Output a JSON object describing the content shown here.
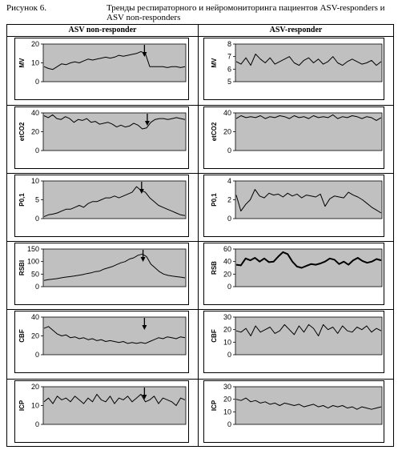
{
  "figure": {
    "label": "Рисунок 6.",
    "title": "Тренды респираторного и нейромониторинга пациентов ASV-responders и ASV non-responders"
  },
  "columns": {
    "left": "ASV non-responder",
    "right": "ASV-responder"
  },
  "colors": {
    "plot_bg": "#c0c0c0",
    "line": "#000000",
    "frame_border": "#000000"
  },
  "chart_data": [
    {
      "type": "line",
      "panel": "ASV non-responder",
      "ylabel": "MV",
      "ylim": [
        0,
        20
      ],
      "yticks": [
        0,
        10,
        20
      ],
      "marker": "arrow-down",
      "marker_x": 0.71,
      "series": [
        {
          "values": [
            8,
            7,
            6.5,
            8,
            9.5,
            9,
            10,
            10.5,
            10,
            11,
            12,
            11.5,
            12,
            12.5,
            13,
            12.5,
            13,
            14,
            13.5,
            14,
            14.5,
            15,
            16,
            15,
            8,
            8,
            8,
            8,
            7.5,
            8,
            8,
            7.5,
            8
          ]
        }
      ]
    },
    {
      "type": "line",
      "panel": "ASV-responder",
      "ylabel": "MV",
      "ylim": [
        5,
        8
      ],
      "yticks": [
        5,
        6,
        7,
        8
      ],
      "series": [
        {
          "values": [
            6.6,
            6.4,
            6.9,
            6.3,
            7.2,
            6.8,
            6.5,
            6.9,
            6.4,
            6.6,
            6.8,
            7.0,
            6.5,
            6.3,
            6.7,
            6.9,
            6.5,
            6.8,
            6.4,
            6.6,
            7.0,
            6.5,
            6.3,
            6.6,
            6.8,
            6.6,
            6.4,
            6.5,
            6.7,
            6.3,
            6.6
          ]
        }
      ]
    },
    {
      "type": "line",
      "panel": "ASV non-responder",
      "ylabel": "etCO2",
      "ylim": [
        0,
        40
      ],
      "yticks": [
        0,
        20,
        40
      ],
      "marker": "arrow-down",
      "marker_x": 0.73,
      "series": [
        {
          "values": [
            37,
            35,
            38,
            34,
            33,
            36,
            34,
            30,
            33,
            32,
            34,
            30,
            31,
            28,
            29,
            30,
            28,
            25,
            27,
            25,
            26,
            29,
            27,
            23,
            24,
            30,
            33,
            34,
            34,
            33,
            34,
            35,
            34,
            33
          ]
        }
      ]
    },
    {
      "type": "line",
      "panel": "ASV-responder",
      "ylabel": "etCO2",
      "ylim": [
        0,
        40
      ],
      "yticks": [
        0,
        20,
        40
      ],
      "series": [
        {
          "values": [
            34,
            37,
            35,
            36,
            35,
            37,
            34,
            36,
            35,
            37,
            36,
            34,
            37,
            35,
            36,
            34,
            37,
            35,
            36,
            35,
            38,
            34,
            36,
            35,
            37,
            36,
            34,
            36,
            35,
            32,
            35
          ]
        }
      ]
    },
    {
      "type": "line",
      "panel": "ASV non-responder",
      "ylabel": "P0,1",
      "ylim": [
        0,
        10
      ],
      "yticks": [
        0,
        5,
        10
      ],
      "marker": "arrow-down",
      "marker_x": 0.69,
      "series": [
        {
          "values": [
            0.5,
            1,
            1.2,
            1.5,
            2,
            2.5,
            2.5,
            3,
            3.5,
            3,
            4,
            4.5,
            4.5,
            5,
            5.5,
            5.5,
            6,
            5.5,
            6,
            6.5,
            7,
            8.5,
            7.5,
            7,
            5.5,
            4.5,
            3.5,
            3,
            2.5,
            2,
            1.5,
            1,
            0.8
          ]
        }
      ]
    },
    {
      "type": "line",
      "panel": "ASV-responder",
      "ylabel": "P0,1",
      "ylim": [
        0,
        4
      ],
      "yticks": [
        0,
        2,
        4
      ],
      "series": [
        {
          "values": [
            2.5,
            0.8,
            1.5,
            2.0,
            3.1,
            2.4,
            2.2,
            2.7,
            2.5,
            2.6,
            2.3,
            2.7,
            2.4,
            2.6,
            2.2,
            2.5,
            2.4,
            2.3,
            2.6,
            1.3,
            2.1,
            2.4,
            2.3,
            2.2,
            2.8,
            2.5,
            2.3,
            2.0,
            1.6,
            1.2,
            0.9,
            0.6
          ]
        }
      ]
    },
    {
      "type": "line",
      "panel": "ASV non-responder",
      "ylabel": "RSBI",
      "ylim": [
        0,
        150
      ],
      "yticks": [
        0,
        50,
        100,
        150
      ],
      "marker": "arrow-down",
      "marker_x": 0.7,
      "series": [
        {
          "values": [
            25,
            28,
            30,
            32,
            35,
            38,
            40,
            42,
            45,
            48,
            52,
            55,
            60,
            62,
            70,
            75,
            80,
            88,
            95,
            100,
            110,
            115,
            125,
            130,
            120,
            90,
            75,
            60,
            50,
            45,
            42,
            40,
            38,
            35
          ]
        }
      ]
    },
    {
      "type": "line",
      "panel": "ASV-responder",
      "ylabel": "RSB",
      "ylim": [
        0,
        60
      ],
      "yticks": [
        0,
        20,
        40,
        60
      ],
      "series": [
        {
          "values": [
            35,
            34,
            45,
            42,
            46,
            40,
            45,
            39,
            40,
            48,
            55,
            52,
            40,
            32,
            30,
            33,
            36,
            35,
            37,
            40,
            45,
            43,
            36,
            40,
            35,
            42,
            46,
            41,
            38,
            40,
            44,
            42
          ]
        }
      ]
    },
    {
      "type": "line",
      "panel": "ASV non-responder",
      "ylabel": "CBF",
      "ylim": [
        0,
        40
      ],
      "yticks": [
        0,
        20,
        40
      ],
      "marker": "arrow-down",
      "marker_x": 0.71,
      "series": [
        {
          "values": [
            28,
            30,
            26,
            22,
            20,
            21,
            18,
            19,
            17,
            18,
            16,
            17,
            15,
            16,
            14,
            15,
            14,
            13,
            14,
            12,
            13,
            12,
            13,
            12,
            14,
            16,
            18,
            17,
            19,
            18,
            17,
            19,
            18
          ]
        }
      ]
    },
    {
      "type": "line",
      "panel": "ASV-responder",
      "ylabel": "CBF",
      "ylim": [
        0,
        30
      ],
      "yticks": [
        0,
        10,
        20,
        30
      ],
      "series": [
        {
          "values": [
            19,
            18,
            21,
            15,
            23,
            18,
            20,
            22,
            17,
            19,
            24,
            20,
            16,
            23,
            18,
            24,
            21,
            15,
            24,
            20,
            22,
            17,
            23,
            19,
            18,
            22,
            20,
            23,
            18,
            21,
            19
          ]
        }
      ]
    },
    {
      "type": "line",
      "panel": "ASV non-responder",
      "ylabel": "ICP",
      "ylim": [
        0,
        20
      ],
      "yticks": [
        0,
        10,
        20
      ],
      "marker": "arrow-down",
      "marker_x": 0.71,
      "series": [
        {
          "values": [
            12,
            14,
            11,
            15,
            13,
            14,
            12,
            15,
            13,
            11,
            14,
            12,
            16,
            13,
            12,
            15,
            11,
            14,
            13,
            15,
            12,
            14,
            16,
            12,
            13,
            15,
            11,
            14,
            13,
            12,
            10,
            14,
            13
          ]
        }
      ]
    },
    {
      "type": "line",
      "panel": "ASV-responder",
      "ylabel": "ICP",
      "ylim": [
        0,
        30
      ],
      "yticks": [
        0,
        10,
        20,
        30
      ],
      "series": [
        {
          "values": [
            20,
            19,
            21,
            18,
            19,
            17,
            18,
            16,
            17,
            15,
            17,
            16,
            15,
            16,
            14,
            15,
            16,
            14,
            15,
            13,
            15,
            14,
            15,
            13,
            14,
            12,
            14,
            13,
            12,
            13,
            14
          ]
        }
      ]
    }
  ]
}
